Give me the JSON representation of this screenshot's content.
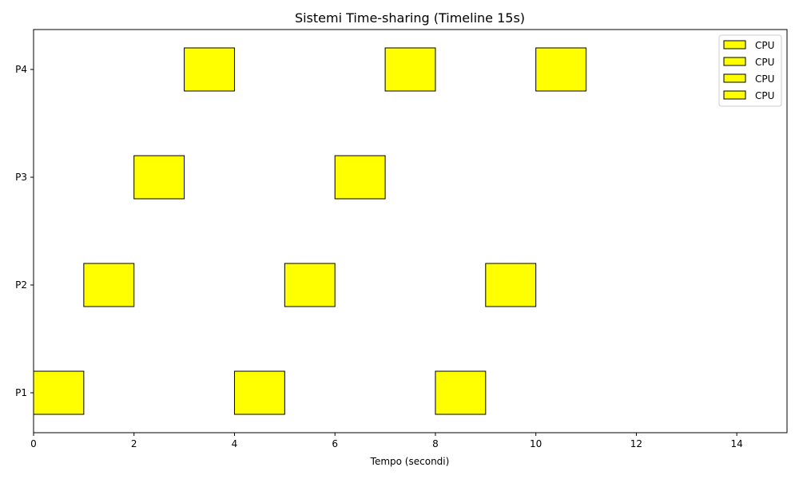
{
  "chart_data": {
    "type": "bar",
    "title": "Sistemi Time-sharing (Timeline 15s)",
    "xlabel": "Tempo (secondi)",
    "ylabel": "",
    "xlim": [
      0,
      15
    ],
    "x_ticks": [
      0,
      2,
      4,
      6,
      8,
      10,
      12,
      14
    ],
    "categories": [
      "P1",
      "P2",
      "P3",
      "P4"
    ],
    "grid": false,
    "legend": {
      "placement": "top-right",
      "entries": [
        "CPU",
        "CPU",
        "CPU",
        "CPU"
      ]
    },
    "bar_color": "#ffff00",
    "edge_color": "#000000",
    "series": [
      {
        "process": "P1",
        "intervals": [
          [
            0,
            1
          ],
          [
            4,
            5
          ],
          [
            8,
            9
          ]
        ]
      },
      {
        "process": "P2",
        "intervals": [
          [
            1,
            2
          ],
          [
            5,
            6
          ],
          [
            9,
            10
          ]
        ]
      },
      {
        "process": "P3",
        "intervals": [
          [
            2,
            3
          ],
          [
            6,
            7
          ]
        ]
      },
      {
        "process": "P4",
        "intervals": [
          [
            3,
            4
          ],
          [
            7,
            8
          ],
          [
            10,
            11
          ]
        ]
      }
    ]
  }
}
